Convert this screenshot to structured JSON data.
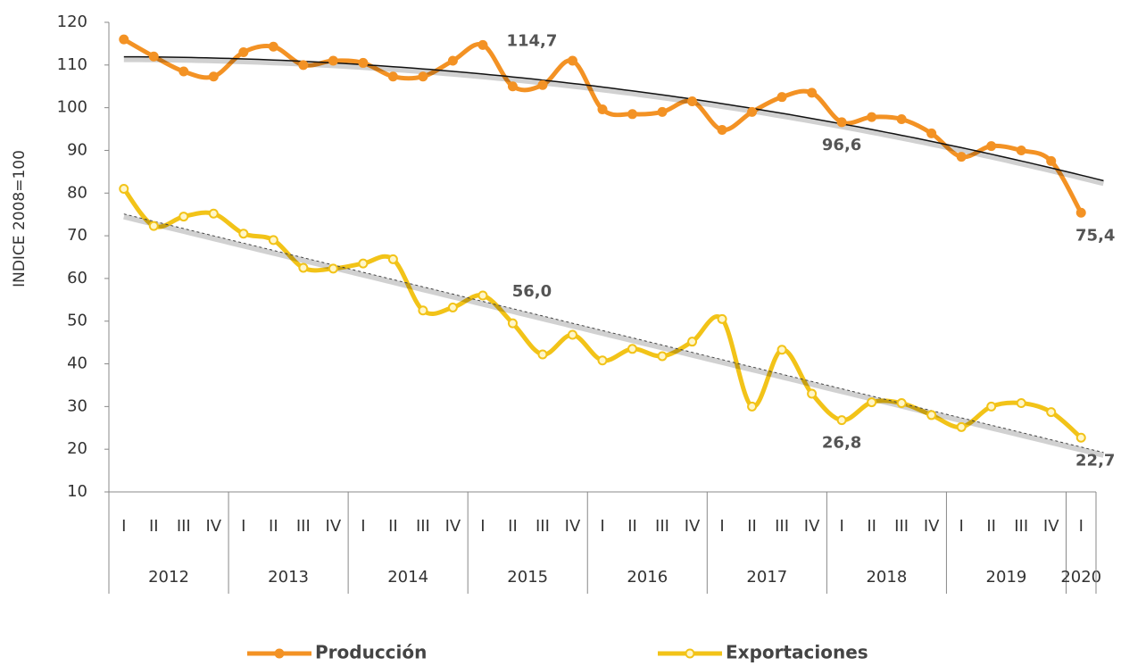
{
  "chart_data": {
    "type": "line",
    "y_label": "INDICE 2008=100",
    "categories": [
      "I",
      "II",
      "III",
      "IV",
      "I",
      "II",
      "III",
      "IV",
      "I",
      "II",
      "III",
      "IV",
      "I",
      "II",
      "III",
      "IV",
      "I",
      "II",
      "III",
      "IV",
      "I",
      "II",
      "III",
      "IV",
      "I",
      "II",
      "III",
      "IV",
      "I",
      "II",
      "III",
      "IV",
      "I"
    ],
    "year_groups": [
      {
        "name": "2012",
        "count": 4
      },
      {
        "name": "2013",
        "count": 4
      },
      {
        "name": "2014",
        "count": 4
      },
      {
        "name": "2015",
        "count": 4
      },
      {
        "name": "2016",
        "count": 4
      },
      {
        "name": "2017",
        "count": 4
      },
      {
        "name": "2018",
        "count": 4
      },
      {
        "name": "2019",
        "count": 4
      },
      {
        "name": "2020",
        "count": 1
      }
    ],
    "ylim": [
      10,
      120
    ],
    "yticks": [
      10,
      20,
      30,
      40,
      50,
      60,
      70,
      80,
      90,
      100,
      110,
      120
    ],
    "legend": "bottom",
    "series": [
      {
        "name": "Producción",
        "color": "#F39224",
        "marker_fill": "#F39224",
        "trendline": "polynomial",
        "trend_color": "#111111",
        "trend_dash": false,
        "values": [
          116,
          112,
          108.5,
          107.3,
          113,
          114.3,
          110,
          111,
          110.5,
          107.3,
          107.3,
          111,
          114.7,
          105,
          105.3,
          111,
          99.6,
          98.5,
          99,
          101.5,
          94.8,
          99,
          102.5,
          103.5,
          96.6,
          97.8,
          97.3,
          94,
          88.5,
          91,
          90,
          87.5,
          75.4
        ],
        "value_labels": [
          null,
          null,
          null,
          null,
          null,
          null,
          null,
          null,
          null,
          null,
          null,
          null,
          "114,7",
          null,
          null,
          null,
          null,
          null,
          null,
          null,
          null,
          null,
          null,
          null,
          "96,6",
          null,
          null,
          null,
          null,
          null,
          null,
          null,
          "75,4"
        ]
      },
      {
        "name": "Exportaciones",
        "color": "#F2C318",
        "marker_fill": "#FFF6C8",
        "trendline": "linear",
        "trend_color": "#444444",
        "trend_dash": true,
        "values": [
          81,
          72.3,
          74.5,
          75.2,
          70.5,
          69,
          62.5,
          62.3,
          63.5,
          64.5,
          52.5,
          53.2,
          56.0,
          49.5,
          42.2,
          46.8,
          40.8,
          43.5,
          41.8,
          45.2,
          50.5,
          30,
          43.3,
          33,
          26.8,
          31,
          30.8,
          28,
          25.2,
          30,
          30.8,
          28.7,
          22.7
        ],
        "value_labels": [
          null,
          null,
          null,
          null,
          null,
          null,
          null,
          null,
          null,
          null,
          null,
          null,
          "56,0",
          null,
          null,
          null,
          null,
          null,
          null,
          null,
          null,
          null,
          null,
          null,
          "26,8",
          null,
          null,
          null,
          null,
          null,
          null,
          null,
          "22,7"
        ]
      }
    ]
  }
}
